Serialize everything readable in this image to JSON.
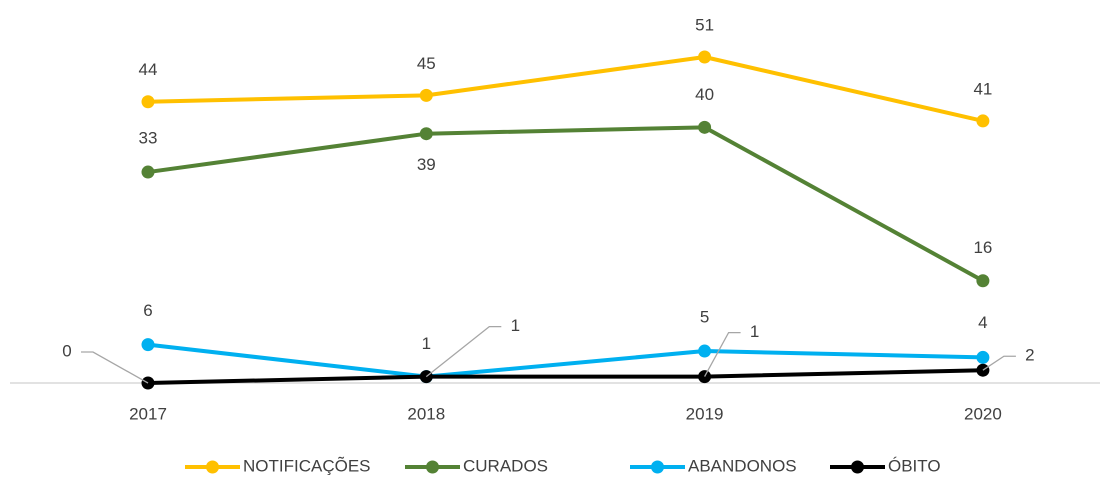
{
  "chart_data": {
    "type": "line",
    "categories": [
      "2017",
      "2018",
      "2019",
      "2020"
    ],
    "series": [
      {
        "name": "NOTIFICAÇÕES",
        "color": "#FFC000",
        "values": [
          44,
          45,
          51,
          41
        ]
      },
      {
        "name": "CURADOS",
        "color": "#548235",
        "values": [
          33,
          39,
          40,
          16
        ]
      },
      {
        "name": "ABANDONOS",
        "color": "#00B0F0",
        "values": [
          6,
          1,
          5,
          4
        ]
      },
      {
        "name": "ÓBITO",
        "color": "#000000",
        "values": [
          0,
          1,
          1,
          2
        ]
      }
    ],
    "legend": "bottom"
  }
}
